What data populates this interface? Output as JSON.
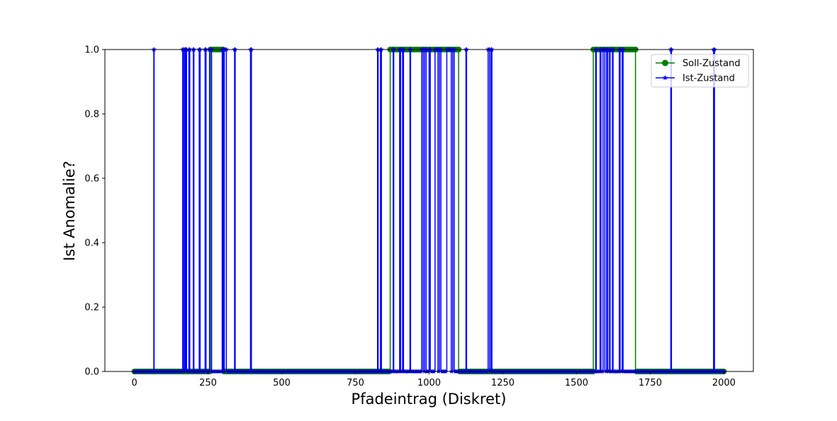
{
  "chart_data": {
    "type": "line",
    "xlabel": "Pfadeintrag (Diskret)",
    "ylabel": "Ist Anomalie?",
    "xlim": [
      -100,
      2100
    ],
    "ylim": [
      0,
      1
    ],
    "xticks": [
      0,
      250,
      500,
      750,
      1000,
      1250,
      1500,
      1750,
      2000
    ],
    "yticks": [
      0.0,
      0.2,
      0.4,
      0.6,
      0.8,
      1.0
    ],
    "xtick_labels": [
      "0",
      "250",
      "500",
      "750",
      "1000",
      "1250",
      "1500",
      "1750",
      "2000"
    ],
    "ytick_labels": [
      "0.0",
      "0.2",
      "0.4",
      "0.6",
      "0.8",
      "1.0"
    ],
    "x_range": [
      0,
      2000
    ],
    "grid": false,
    "legend_position": "top-right",
    "series": [
      {
        "name": "Soll-Zustand",
        "color": "#008000",
        "marker": "circle",
        "anomaly_intervals": [
          [
            258,
            300
          ],
          [
            868,
            1100
          ],
          [
            1557,
            1700
          ]
        ]
      },
      {
        "name": "Ist-Zustand",
        "color": "#0000ff",
        "marker": "star",
        "anomaly_intervals": [
          [
            66,
            67
          ],
          [
            164,
            166
          ],
          [
            170,
            172
          ],
          [
            175,
            177
          ],
          [
            185,
            188
          ],
          [
            200,
            202
          ],
          [
            220,
            223
          ],
          [
            240,
            243
          ],
          [
            255,
            262
          ],
          [
            298,
            302
          ],
          [
            305,
            312
          ],
          [
            340,
            342
          ],
          [
            394,
            397
          ],
          [
            825,
            827
          ],
          [
            835,
            838
          ],
          [
            878,
            880
          ],
          [
            900,
            903
          ],
          [
            910,
            913
          ],
          [
            935,
            937
          ],
          [
            975,
            980
          ],
          [
            985,
            990
          ],
          [
            1000,
            1004
          ],
          [
            1020,
            1030
          ],
          [
            1035,
            1040
          ],
          [
            1060,
            1075
          ],
          [
            1080,
            1085
          ],
          [
            1125,
            1127
          ],
          [
            1200,
            1205
          ],
          [
            1210,
            1213
          ],
          [
            1565,
            1567
          ],
          [
            1580,
            1583
          ],
          [
            1590,
            1596
          ],
          [
            1602,
            1606
          ],
          [
            1612,
            1614
          ],
          [
            1622,
            1624
          ],
          [
            1645,
            1648
          ],
          [
            1655,
            1658
          ],
          [
            1820,
            1822
          ],
          [
            1965,
            1968
          ]
        ]
      }
    ]
  }
}
